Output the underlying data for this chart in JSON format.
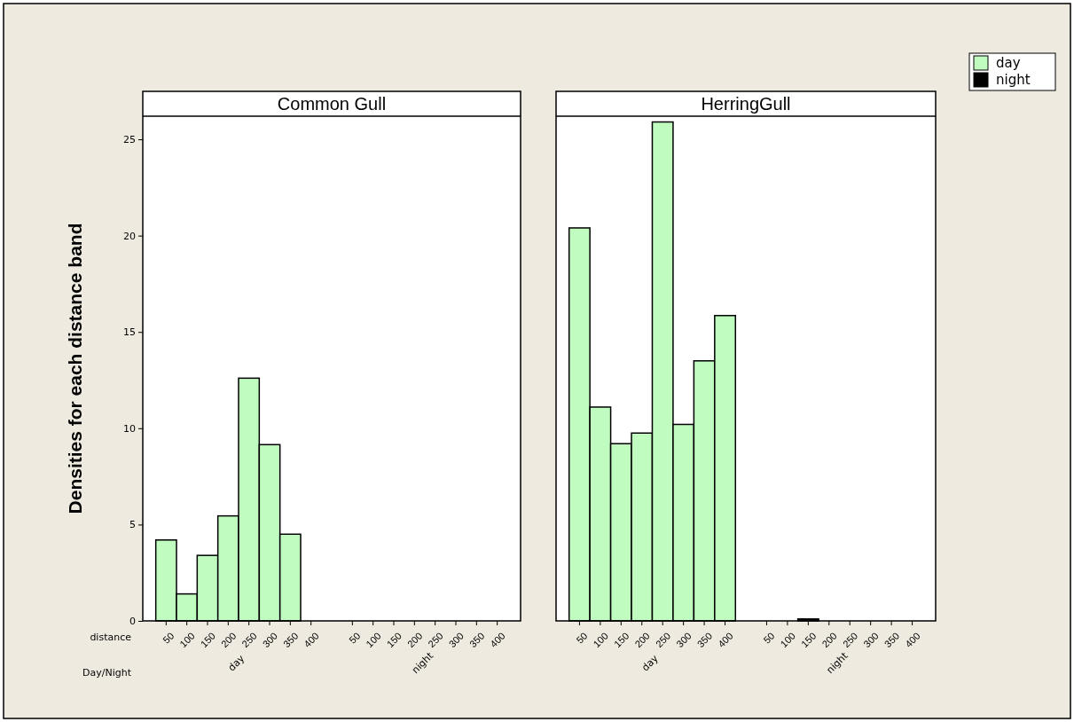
{
  "chart_data": [
    {
      "type": "bar",
      "title": "Common Gull",
      "ylabel": "Densities for each distance band",
      "categories": [
        "50",
        "100",
        "150",
        "200",
        "250",
        "300",
        "350",
        "400",
        null,
        "50",
        "100",
        "150",
        "200",
        "250",
        "300",
        "350",
        "400"
      ],
      "series": [
        {
          "name": "day",
          "color": "#c0fcc0",
          "values": [
            4.2,
            1.4,
            3.4,
            5.45,
            12.6,
            9.15,
            4.5,
            0,
            null,
            null,
            null,
            null,
            null,
            null,
            null,
            null,
            null
          ]
        },
        {
          "name": "night",
          "color": "#000000",
          "values": [
            null,
            null,
            null,
            null,
            null,
            null,
            null,
            null,
            null,
            0,
            0,
            0,
            0,
            0,
            0,
            0,
            0
          ]
        }
      ],
      "ylim": [
        0,
        26.2
      ],
      "yticks": [
        0,
        5,
        10,
        15,
        20,
        25
      ],
      "annotations": [
        "distance",
        "Day/Night"
      ]
    },
    {
      "type": "bar",
      "title": "HerringGull",
      "categories": [
        "50",
        "100",
        "150",
        "200",
        "250",
        "300",
        "350",
        "400",
        null,
        "50",
        "100",
        "150",
        "200",
        "250",
        "300",
        "350",
        "400"
      ],
      "series": [
        {
          "name": "day",
          "color": "#c0fcc0",
          "values": [
            20.4,
            11.1,
            9.2,
            9.75,
            25.9,
            10.2,
            13.5,
            15.85,
            null,
            null,
            null,
            null,
            null,
            null,
            null,
            null,
            null
          ]
        },
        {
          "name": "night",
          "color": "#000000",
          "values": [
            null,
            null,
            null,
            null,
            null,
            null,
            null,
            null,
            null,
            0,
            0,
            0.1,
            0,
            0,
            0,
            0,
            0
          ]
        }
      ],
      "ylim": [
        0,
        26.2
      ],
      "tick_labels": "x",
      "legend": "right"
    }
  ]
}
